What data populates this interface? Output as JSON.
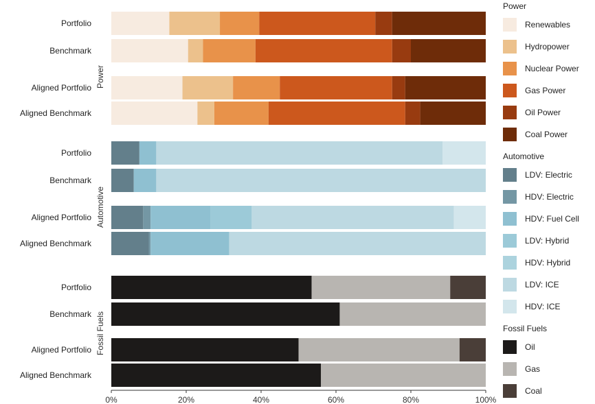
{
  "chart_data": {
    "type": "bar",
    "orientation": "horizontal",
    "stacked": true,
    "xlim": [
      0,
      100
    ],
    "x_ticks": [
      "0%",
      "20%",
      "40%",
      "60%",
      "80%",
      "100%"
    ],
    "grid": false,
    "legend_placement": "right",
    "panels": [
      {
        "name": "Power",
        "categories": [
          "Portfolio",
          "Benchmark",
          "Aligned Portfolio",
          "Aligned Benchmark"
        ],
        "series": [
          {
            "name": "Renewables",
            "color": "#f7ebe0",
            "values": [
              15.5,
              20.5,
              19.0,
              23.0
            ]
          },
          {
            "name": "Hydropower",
            "color": "#ecc18c",
            "values": [
              13.5,
              4.0,
              13.5,
              4.5
            ]
          },
          {
            "name": "Nuclear Power",
            "color": "#e8924a",
            "values": [
              10.5,
              14.0,
              12.5,
              14.5
            ]
          },
          {
            "name": "Gas Power",
            "color": "#cc581d",
            "values": [
              31.0,
              36.5,
              30.0,
              36.5
            ]
          },
          {
            "name": "Oil Power",
            "color": "#983b10",
            "values": [
              4.5,
              5.0,
              3.5,
              4.0
            ]
          },
          {
            "name": "Coal Power",
            "color": "#6e2c09",
            "values": [
              25.0,
              20.0,
              21.5,
              17.5
            ]
          }
        ]
      },
      {
        "name": "Automotive",
        "categories": [
          "Portfolio",
          "Benchmark",
          "Aligned Portfolio",
          "Aligned Benchmark"
        ],
        "series": [
          {
            "name": "LDV: Electric",
            "color": "#637f8b",
            "values": [
              7.5,
              6.0,
              8.5,
              10.0
            ]
          },
          {
            "name": "HDV: Electric",
            "color": "#7497a4",
            "values": [
              0,
              0,
              2.0,
              0.5
            ]
          },
          {
            "name": "HDV: Fuel Cell",
            "color": "#8fc0d1",
            "values": [
              4.5,
              6.0,
              16.0,
              21.0
            ]
          },
          {
            "name": "LDV: Hybrid",
            "color": "#9ccad8",
            "values": [
              0,
              0,
              11.0,
              0
            ]
          },
          {
            "name": "HDV: Hybrid",
            "color": "#acd3de",
            "values": [
              0,
              0,
              0,
              0
            ]
          },
          {
            "name": "LDV: ICE",
            "color": "#bdd9e2",
            "values": [
              76.5,
              88.0,
              54.0,
              68.5
            ]
          },
          {
            "name": "HDV: ICE",
            "color": "#d3e6ec",
            "values": [
              11.5,
              0,
              8.5,
              0
            ]
          }
        ]
      },
      {
        "name": "Fossil Fuels",
        "categories": [
          "Portfolio",
          "Benchmark",
          "Aligned Portfolio",
          "Aligned Benchmark"
        ],
        "series": [
          {
            "name": "Oil",
            "color": "#1c1a19",
            "values": [
              53.5,
              61.0,
              50.0,
              56.0
            ]
          },
          {
            "name": "Gas",
            "color": "#b8b5b1",
            "values": [
              37.0,
              39.0,
              43.0,
              44.0
            ]
          },
          {
            "name": "Coal",
            "color": "#4a3e38",
            "values": [
              9.5,
              0,
              7.0,
              0
            ]
          }
        ]
      }
    ]
  }
}
